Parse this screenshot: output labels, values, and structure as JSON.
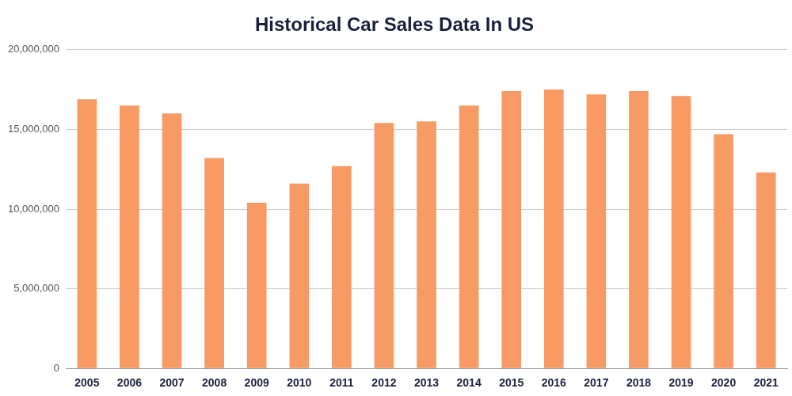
{
  "chart_data": {
    "type": "bar",
    "title": "Historical Car Sales Data In US",
    "categories": [
      "2005",
      "2006",
      "2007",
      "2008",
      "2009",
      "2010",
      "2011",
      "2012",
      "2013",
      "2014",
      "2015",
      "2016",
      "2017",
      "2018",
      "2019",
      "2020",
      "2021"
    ],
    "values": [
      16900000,
      16500000,
      16000000,
      13200000,
      10400000,
      11600000,
      12700000,
      15400000,
      15500000,
      16500000,
      17400000,
      17500000,
      17200000,
      17400000,
      17100000,
      14700000,
      12300000
    ],
    "color": "#f79a63",
    "ylim": [
      0,
      20000000
    ],
    "yticks": [
      0,
      {
        "value": 5000000,
        "label": "5,000,000"
      },
      {
        "value": 10000000,
        "label": "10,000,000"
      },
      {
        "value": 15000000,
        "label": "15,000,000"
      },
      {
        "value": 20000000,
        "label": "20,000,000"
      }
    ],
    "grid": true
  }
}
